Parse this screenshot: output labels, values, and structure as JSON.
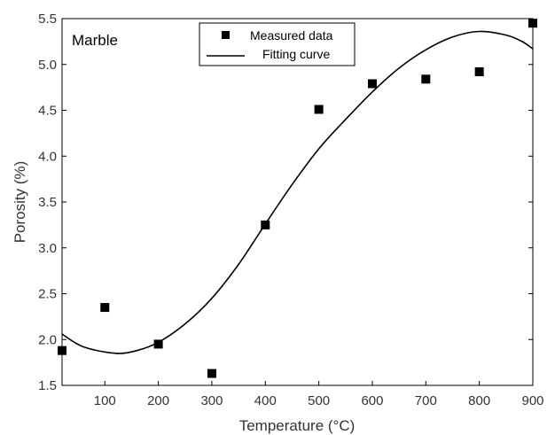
{
  "chart_data": {
    "type": "scatter",
    "title": "",
    "annotation": "Marble",
    "xlabel": "Temperature (°C)",
    "ylabel": "Porosity (%)",
    "xlim": [
      20,
      900
    ],
    "ylim": [
      1.5,
      5.5
    ],
    "x_ticks": [
      100,
      200,
      300,
      400,
      500,
      600,
      700,
      800,
      900
    ],
    "y_ticks": [
      "1.5",
      "2.0",
      "2.5",
      "3.0",
      "3.5",
      "4.0",
      "4.5",
      "5.0",
      "5.5"
    ],
    "grid": false,
    "legend_position": "top-center",
    "series": [
      {
        "name": "Measured data",
        "marker": "square",
        "color": "#000000",
        "x": [
          20,
          100,
          200,
          300,
          400,
          500,
          600,
          700,
          800,
          900
        ],
        "y": [
          1.88,
          2.35,
          1.95,
          1.63,
          3.25,
          4.51,
          4.79,
          4.84,
          4.92,
          5.45
        ]
      },
      {
        "name": "Fitting curve",
        "style": "line",
        "color": "#000000",
        "x": [
          20,
          60,
          120,
          160,
          200,
          250,
          300,
          350,
          400,
          450,
          500,
          550,
          600,
          650,
          700,
          750,
          800,
          850,
          880,
          900
        ],
        "y": [
          2.06,
          1.92,
          1.85,
          1.88,
          1.97,
          2.17,
          2.45,
          2.82,
          3.26,
          3.69,
          4.08,
          4.4,
          4.7,
          4.96,
          5.16,
          5.3,
          5.36,
          5.32,
          5.25,
          5.17
        ]
      }
    ]
  }
}
